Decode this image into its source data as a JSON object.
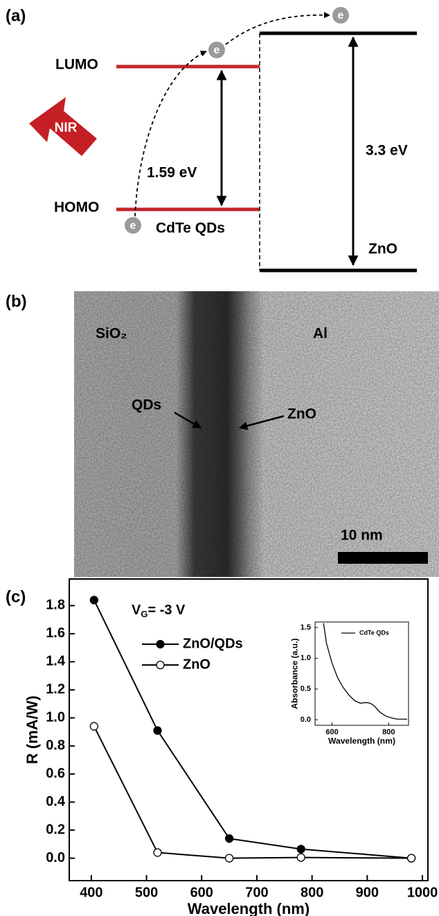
{
  "panel_a": {
    "label": "(a)",
    "lumo": "LUMO",
    "homo": "HOMO",
    "light": "NIR",
    "gap_qd": "1.59 eV",
    "gap_zno": "3.3 eV",
    "qd_name": "CdTe QDs",
    "zno_name": "ZnO",
    "electron": "e"
  },
  "panel_b": {
    "label": "(b)",
    "left_layer": "SiO₂",
    "right_layer": "Al",
    "qd_label": "QDs",
    "zno_label": "ZnO",
    "scale_bar": "10 nm"
  },
  "panel_c": {
    "label": "(c)"
  },
  "chart_data": [
    {
      "type": "line",
      "xlabel": "Wavelength (nm)",
      "ylabel": "R (mA/W)",
      "annotation": {
        "text": "V",
        "subscript": "G",
        "suffix": "= -3 V"
      },
      "x": [
        405,
        520,
        650,
        780,
        980
      ],
      "series": [
        {
          "name": "ZnO/QDs",
          "color": "#000000",
          "marker": "filled",
          "values": [
            1.84,
            0.91,
            0.14,
            0.065,
            0.0
          ]
        },
        {
          "name": "ZnO",
          "color": "#000000",
          "marker": "open",
          "values": [
            0.94,
            0.04,
            0.0,
            0.005,
            0.0
          ]
        }
      ],
      "xlim": [
        360,
        1010
      ],
      "ylim": [
        -0.16,
        1.99
      ],
      "xticks": [
        400,
        500,
        600,
        700,
        800,
        900,
        1000
      ],
      "yticks": [
        {
          "value": 0.0,
          "label": "0.0"
        },
        0.2,
        0.4,
        0.6,
        0.8,
        {
          "value": 1.0,
          "label": "1.0"
        },
        1.2,
        1.4,
        1.6,
        1.8
      ],
      "legend": "upper left"
    },
    {
      "type": "line",
      "xlabel": "Wavelength (nm)",
      "ylabel": "Absorbance (a.u.)",
      "x": [
        570,
        580,
        600,
        620,
        640,
        660,
        680,
        700,
        720,
        735,
        750,
        770,
        790,
        810,
        830,
        850,
        865
      ],
      "series": [
        {
          "name": "CdTe QDs",
          "color": "#000000",
          "marker": "none",
          "values": [
            1.57,
            1.25,
            0.92,
            0.68,
            0.52,
            0.4,
            0.31,
            0.27,
            0.28,
            0.27,
            0.22,
            0.12,
            0.06,
            0.03,
            0.01,
            0.01,
            0.01
          ]
        }
      ],
      "xlim": [
        540,
        870
      ],
      "ylim": [
        -0.09,
        1.59
      ],
      "xticks": [
        600,
        800
      ],
      "yticks": [
        {
          "value": 0.0,
          "label": "0.0"
        },
        0.5,
        {
          "value": 1.0,
          "label": "1.0"
        },
        1.5
      ],
      "legend": "upper right"
    }
  ]
}
